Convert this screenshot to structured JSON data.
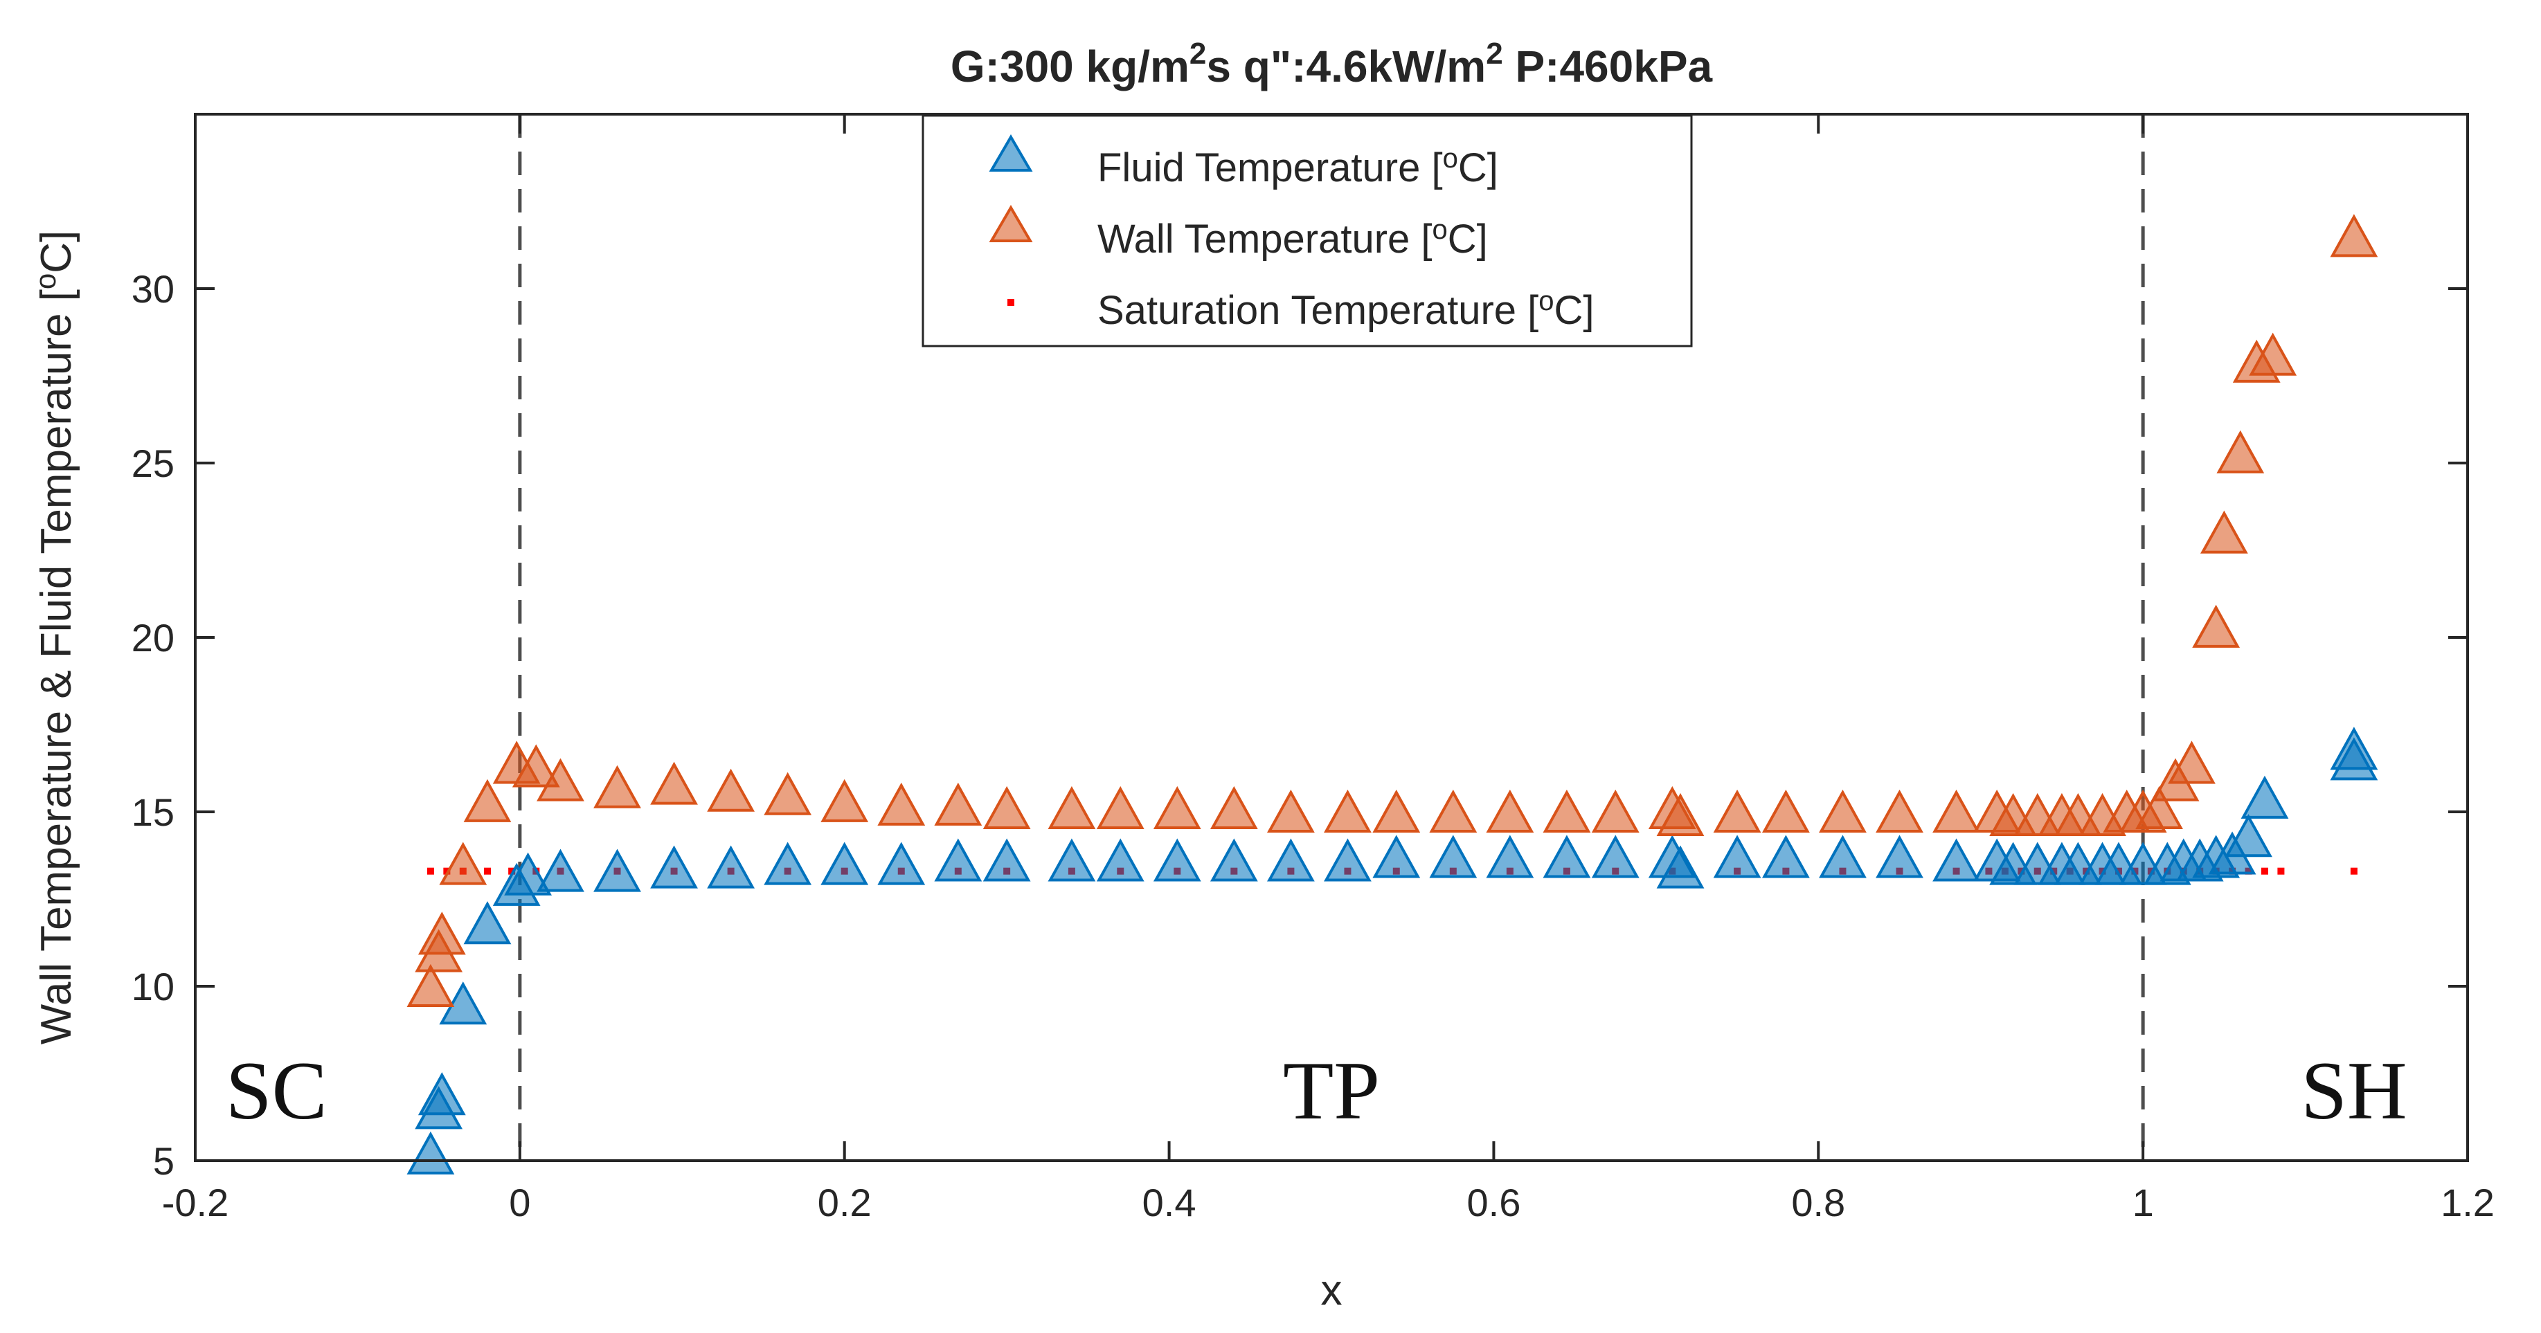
{
  "chart_data": {
    "type": "scatter",
    "title": {
      "main": "G:300 kg/m",
      "sup1": "2",
      "mid": "s q\":4.6kW/m",
      "sup2": "2",
      "end": " P:460kPa"
    },
    "xlabel": "x",
    "ylabel": {
      "pre": "Wall Temperature & Fluid Temperature [",
      "sup": "o",
      "post": "C]"
    },
    "xlim": [
      -0.2,
      1.2
    ],
    "ylim": [
      5,
      35
    ],
    "xticks": [
      -0.2,
      0,
      0.2,
      0.4,
      0.6,
      0.8,
      1,
      1.2
    ],
    "xtick_labels": [
      "-0.2",
      "0",
      "0.2",
      "0.4",
      "0.6",
      "0.8",
      "1",
      "1.2"
    ],
    "yticks": [
      5,
      10,
      15,
      20,
      25,
      30
    ],
    "ytick_labels": [
      "5",
      "10",
      "15",
      "20",
      "25",
      "30"
    ],
    "vlines": [
      0,
      1
    ],
    "regions": [
      {
        "label": "SC",
        "x": -0.15,
        "y": 7
      },
      {
        "label": "TP",
        "x": 0.5,
        "y": 7
      },
      {
        "label": "SH",
        "x": 1.13,
        "y": 7
      }
    ],
    "legend": [
      {
        "name": "Fluid Temperature [",
        "sup": "o",
        "post": "C]"
      },
      {
        "name": "Wall Temperature [",
        "sup": "o",
        "post": "C]"
      },
      {
        "name": "Saturation Temperature [",
        "sup": "o",
        "post": "C]"
      }
    ],
    "colors": {
      "fluid": "#0072BD",
      "wall": "#D95319",
      "saturation": "#FF0000"
    },
    "series": [
      {
        "name": "Fluid Temperature",
        "x": [
          -0.055,
          -0.05,
          -0.048,
          -0.035,
          -0.02,
          -0.002,
          0.005,
          0.025,
          0.06,
          0.095,
          0.13,
          0.165,
          0.2,
          0.235,
          0.27,
          0.3,
          0.34,
          0.37,
          0.405,
          0.44,
          0.475,
          0.51,
          0.54,
          0.575,
          0.61,
          0.645,
          0.675,
          0.71,
          0.715,
          0.75,
          0.78,
          0.815,
          0.85,
          0.885,
          0.91,
          0.92,
          0.935,
          0.95,
          0.96,
          0.975,
          0.985,
          1.0,
          1.015,
          1.025,
          1.035,
          1.045,
          1.055,
          1.065,
          1.075,
          1.13,
          1.13
        ],
        "y": [
          5.2,
          6.5,
          6.9,
          9.5,
          11.8,
          12.9,
          13.2,
          13.3,
          13.3,
          13.4,
          13.4,
          13.5,
          13.5,
          13.5,
          13.6,
          13.6,
          13.6,
          13.6,
          13.6,
          13.6,
          13.6,
          13.6,
          13.7,
          13.7,
          13.7,
          13.7,
          13.7,
          13.7,
          13.4,
          13.7,
          13.7,
          13.7,
          13.7,
          13.6,
          13.6,
          13.5,
          13.5,
          13.5,
          13.5,
          13.5,
          13.5,
          13.5,
          13.5,
          13.6,
          13.6,
          13.7,
          13.8,
          14.3,
          15.4,
          16.5,
          16.8
        ]
      },
      {
        "name": "Wall Temperature",
        "x": [
          -0.055,
          -0.05,
          -0.048,
          -0.035,
          -0.02,
          -0.002,
          0.01,
          0.025,
          0.06,
          0.095,
          0.13,
          0.165,
          0.2,
          0.235,
          0.27,
          0.3,
          0.34,
          0.37,
          0.405,
          0.44,
          0.475,
          0.51,
          0.54,
          0.575,
          0.61,
          0.645,
          0.675,
          0.71,
          0.715,
          0.75,
          0.78,
          0.815,
          0.85,
          0.885,
          0.91,
          0.92,
          0.935,
          0.95,
          0.96,
          0.975,
          0.99,
          1.0,
          1.01,
          1.02,
          1.03,
          1.045,
          1.05,
          1.06,
          1.07,
          1.08,
          1.13
        ],
        "y": [
          10.0,
          11.0,
          11.5,
          13.5,
          15.3,
          16.4,
          16.3,
          15.9,
          15.7,
          15.8,
          15.6,
          15.5,
          15.3,
          15.2,
          15.2,
          15.1,
          15.1,
          15.1,
          15.1,
          15.1,
          15.0,
          15.0,
          15.0,
          15.0,
          15.0,
          15.0,
          15.0,
          15.1,
          14.9,
          15.0,
          15.0,
          15.0,
          15.0,
          15.0,
          15.0,
          14.9,
          14.9,
          14.9,
          14.9,
          14.9,
          15.0,
          15.0,
          15.1,
          15.9,
          16.4,
          20.3,
          23.0,
          25.3,
          27.9,
          28.1,
          31.5
        ]
      },
      {
        "name": "Saturation Temperature",
        "x": [
          -0.055,
          -0.045,
          -0.035,
          -0.02,
          -0.005,
          0.01,
          0.025,
          0.06,
          0.095,
          0.13,
          0.165,
          0.2,
          0.235,
          0.27,
          0.3,
          0.34,
          0.37,
          0.405,
          0.44,
          0.475,
          0.51,
          0.54,
          0.575,
          0.61,
          0.645,
          0.675,
          0.71,
          0.75,
          0.78,
          0.815,
          0.85,
          0.885,
          0.905,
          0.915,
          0.925,
          0.935,
          0.945,
          0.955,
          0.965,
          0.975,
          0.985,
          0.995,
          1.005,
          1.015,
          1.025,
          1.035,
          1.045,
          1.055,
          1.065,
          1.075,
          1.085,
          1.13
        ],
        "y": [
          13.3,
          13.3,
          13.3,
          13.3,
          13.3,
          13.3,
          13.3,
          13.3,
          13.3,
          13.3,
          13.3,
          13.3,
          13.3,
          13.3,
          13.3,
          13.3,
          13.3,
          13.3,
          13.3,
          13.3,
          13.3,
          13.3,
          13.3,
          13.3,
          13.3,
          13.3,
          13.3,
          13.3,
          13.3,
          13.3,
          13.3,
          13.3,
          13.3,
          13.3,
          13.3,
          13.3,
          13.3,
          13.3,
          13.3,
          13.3,
          13.3,
          13.3,
          13.3,
          13.3,
          13.3,
          13.3,
          13.3,
          13.3,
          13.3,
          13.3,
          13.3,
          13.3
        ]
      }
    ]
  }
}
